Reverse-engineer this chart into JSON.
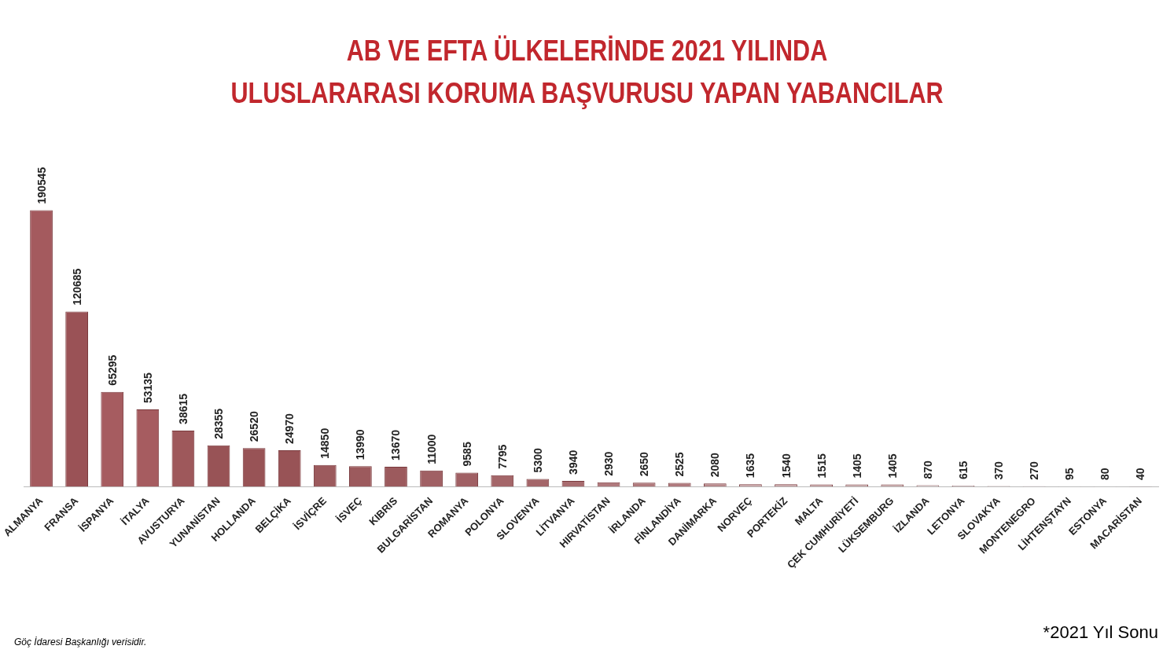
{
  "chart_data": {
    "type": "bar",
    "title": "AB VE EFTA ÜLKELERİNDE 2021 YILINDA\nULUSLARARASI KORUMA BAŞVURUSU YAPAN YABANCILAR",
    "categories": [
      "ALMANYA",
      "FRANSA",
      "İSPANYA",
      "İTALYA",
      "AVUSTURYA",
      "YUNANİSTAN",
      "HOLLANDA",
      "BELÇİKA",
      "İSVİÇRE",
      "İSVEÇ",
      "KIBRIS",
      "BULGARİSTAN",
      "ROMANYA",
      "POLONYA",
      "SLOVENYA",
      "LİTVANYA",
      "HIRVATİSTAN",
      "İRLANDA",
      "FİNLANDİYA",
      "DANİMARKA",
      "NORVEÇ",
      "PORTEKİZ",
      "MALTA",
      "ÇEK CUMHURİYETİ",
      "LÜKSEMBURG",
      "İZLANDA",
      "LETONYA",
      "SLOVAKYA",
      "MONTENEGRO",
      "LİHTENŞTAYN",
      "ESTONYA",
      "MACARİSTAN"
    ],
    "values": [
      190545,
      120685,
      65295,
      53135,
      38615,
      28355,
      26520,
      24970,
      14850,
      13990,
      13670,
      11000,
      9585,
      7795,
      5300,
      3940,
      2930,
      2650,
      2525,
      2080,
      1635,
      1540,
      1515,
      1405,
      1405,
      870,
      615,
      370,
      270,
      95,
      80,
      40
    ],
    "colors": [
      "#a45a5e",
      "#9a5256",
      "#a65c60",
      "#a65c60",
      "#9e585b",
      "#985356",
      "#985356",
      "#985356",
      "#9c5a5d",
      "#9c5a5d",
      "#9c5a5d",
      "#a06064",
      "#a06064",
      "#a46669",
      "#a46669",
      "#a86c6f",
      "#b07a7d",
      "#b07a7d",
      "#b07a7d",
      "#b88a8c",
      "#c4a0a2",
      "#c4a0a2",
      "#c4a0a2",
      "#c8aaab",
      "#c8aaab",
      "#d4c4c5",
      "#d8cccd",
      "#dcd4d5",
      "#dcd4d5",
      "#e0dcdc",
      "#e0dcdc",
      "#e0dcdc"
    ],
    "data_labels": true,
    "tick_labels": "x",
    "grid": false,
    "legend": false,
    "annotations": [
      "Göç İdaresi Başkanlığı verisidir.",
      "*2021 Yıl Sonu"
    ]
  }
}
